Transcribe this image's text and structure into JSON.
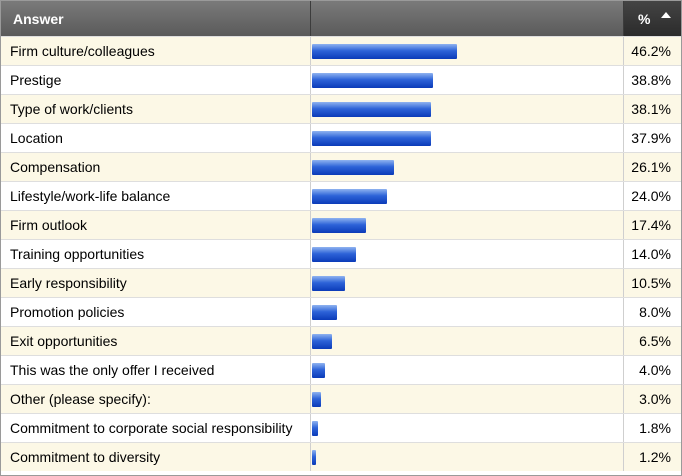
{
  "header": {
    "answer_label": "Answer",
    "pct_label": "%",
    "sort_icon": "sort-ascending-arrow"
  },
  "colors": {
    "header_bg": "#6a6a6a",
    "header_active_bg": "#333333",
    "bar": "#2d63d8",
    "row_alt": "#fcf8e6"
  },
  "chart_data": {
    "type": "bar",
    "orientation": "horizontal",
    "xlim": [
      0,
      100
    ],
    "categories": [
      "Firm culture/colleagues",
      "Prestige",
      "Type of work/clients",
      "Location",
      "Compensation",
      "Lifestyle/work-life balance",
      "Firm outlook",
      "Training opportunities",
      "Early responsibility",
      "Promotion policies",
      "Exit opportunities",
      "This was the only offer I received",
      "Other (please specify):",
      "Commitment to corporate social responsibility",
      "Commitment to diversity"
    ],
    "values": [
      46.2,
      38.8,
      38.1,
      37.9,
      26.1,
      24.0,
      17.4,
      14.0,
      10.5,
      8.0,
      6.5,
      4.0,
      3.0,
      1.8,
      1.2
    ],
    "value_labels": [
      "46.2%",
      "38.8%",
      "38.1%",
      "37.9%",
      "26.1%",
      "24.0%",
      "17.4%",
      "14.0%",
      "10.5%",
      "8.0%",
      "6.5%",
      "4.0%",
      "3.0%",
      "1.8%",
      "1.2%"
    ]
  }
}
